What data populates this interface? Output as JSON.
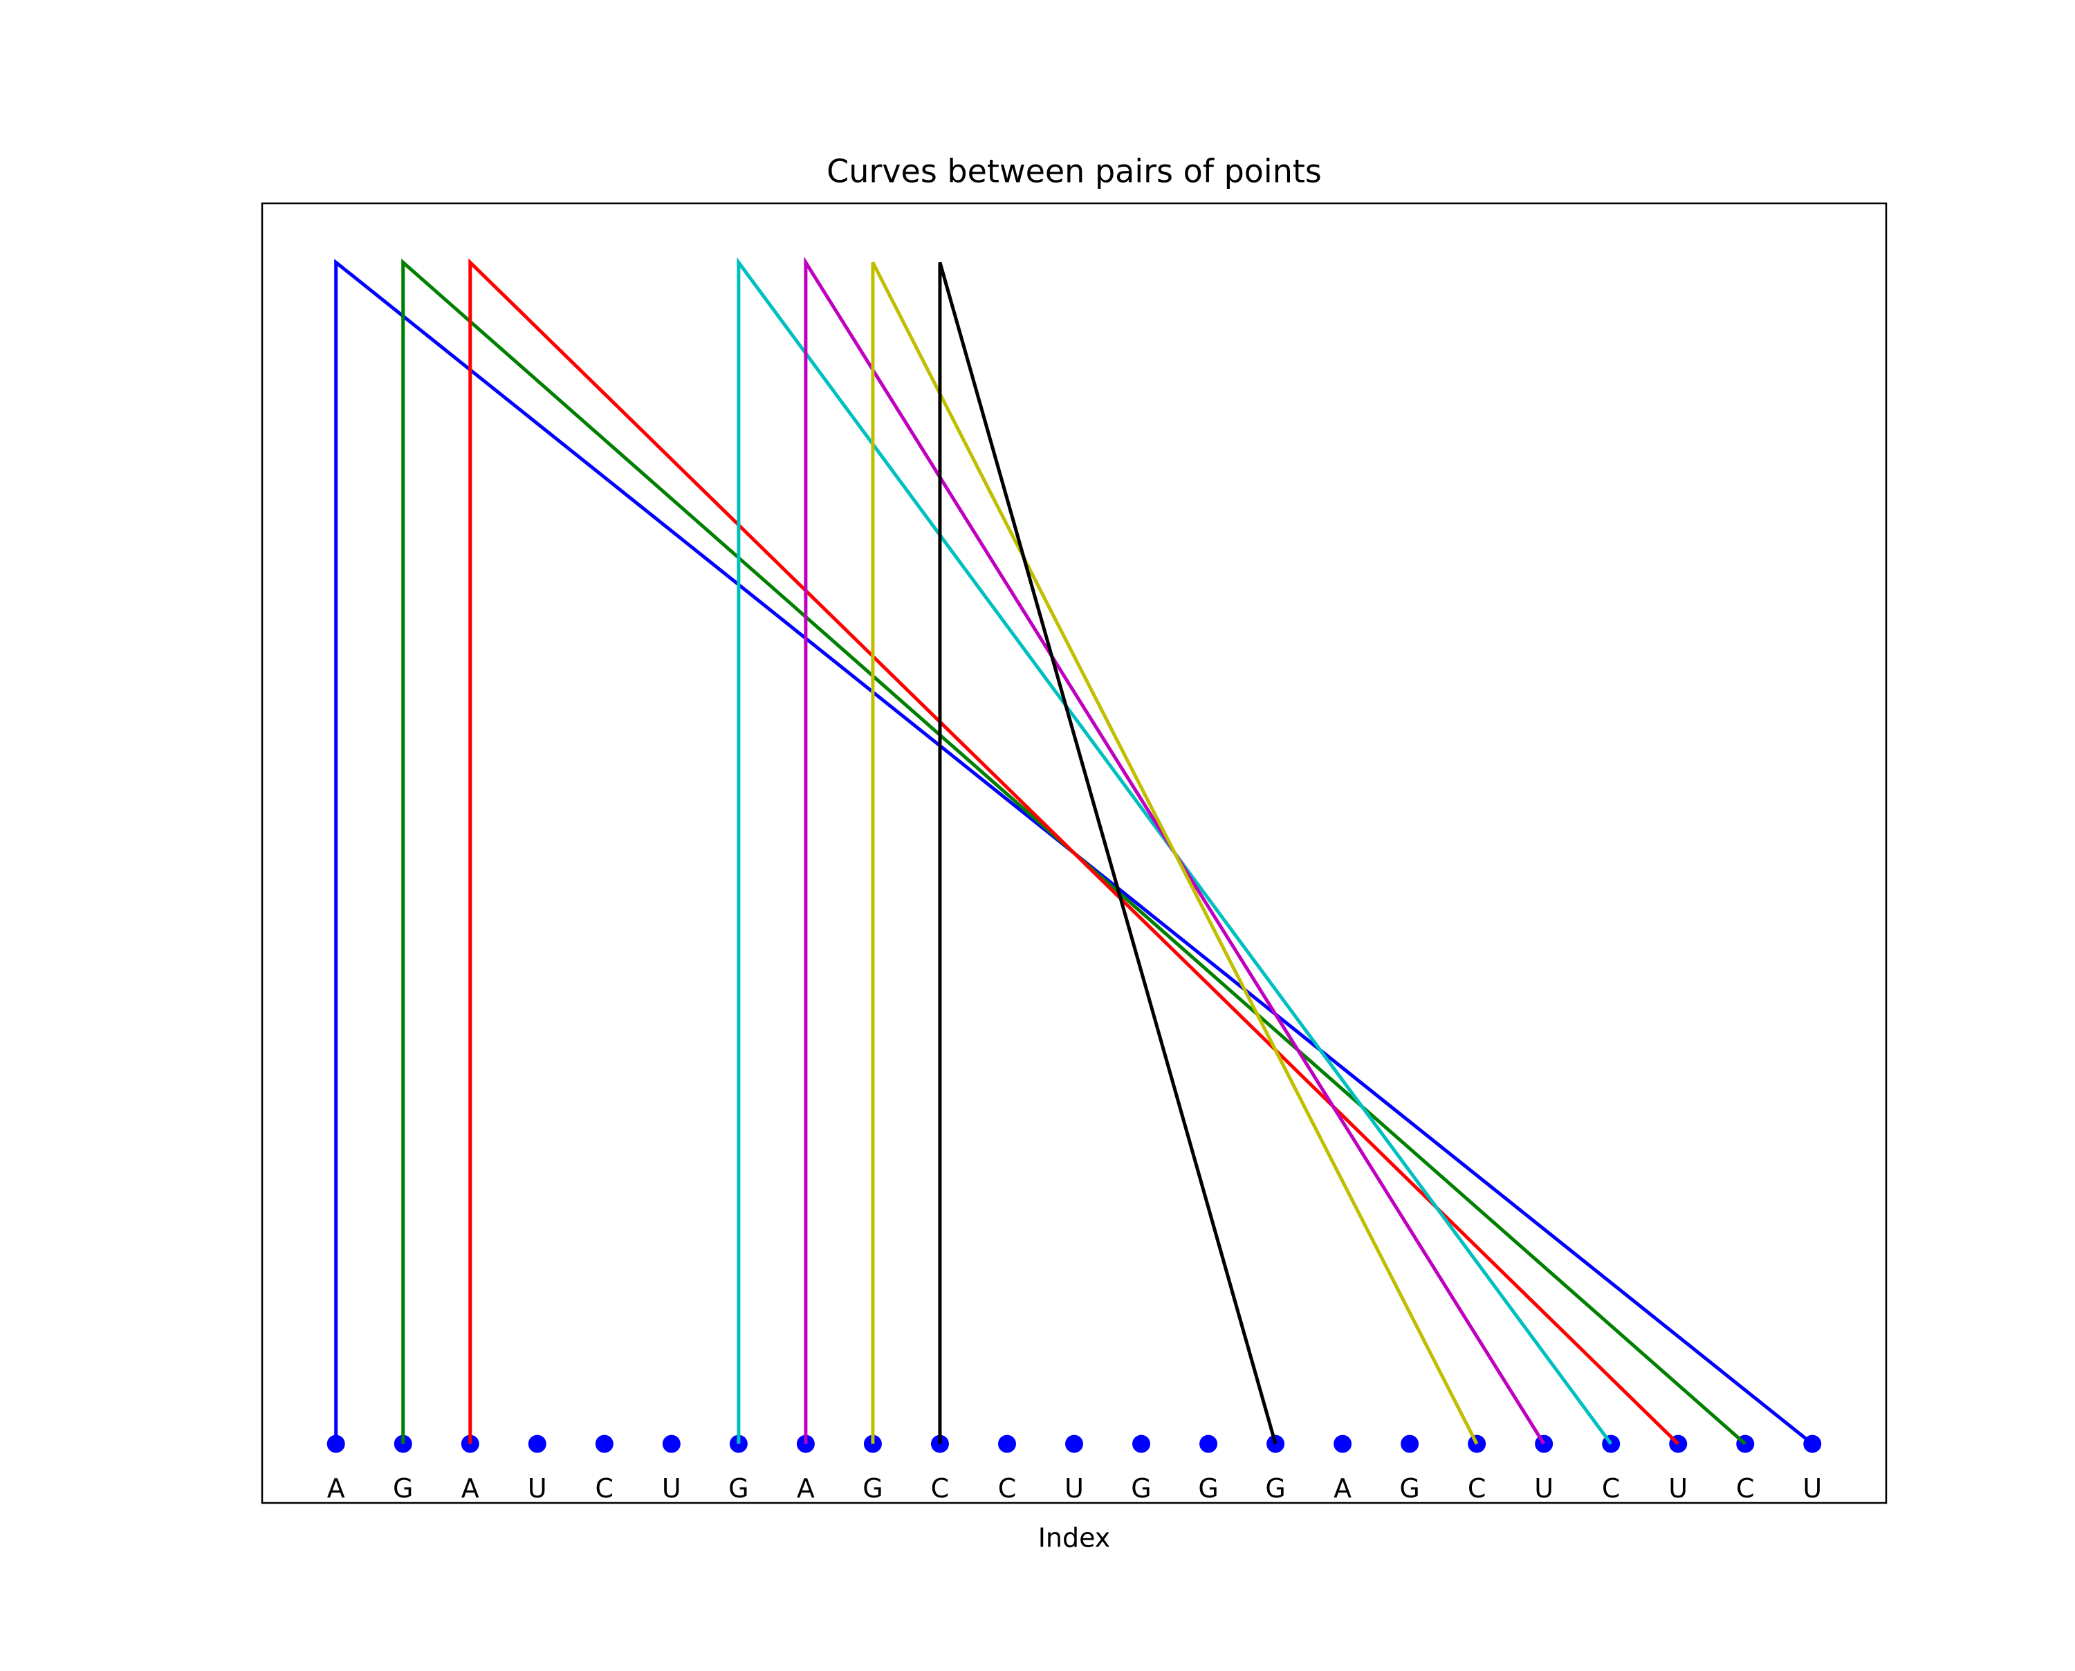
{
  "chart_data": {
    "type": "arc",
    "title": "Curves between pairs of points",
    "xlabel": "Index",
    "categories": [
      "A",
      "G",
      "A",
      "U",
      "C",
      "U",
      "G",
      "A",
      "G",
      "C",
      "C",
      "U",
      "G",
      "G",
      "G",
      "A",
      "G",
      "C",
      "U",
      "C",
      "U",
      "C",
      "U"
    ],
    "x": [
      0,
      1,
      2,
      3,
      4,
      5,
      6,
      7,
      8,
      9,
      10,
      11,
      12,
      13,
      14,
      15,
      16,
      17,
      18,
      19,
      20,
      21,
      22
    ],
    "y": [
      0,
      0,
      0,
      0,
      0,
      0,
      0,
      0,
      0,
      0,
      0,
      0,
      0,
      0,
      0,
      0,
      0,
      0,
      0,
      0,
      0,
      0,
      0
    ],
    "point_color": "#0000ff",
    "pairs": [
      {
        "from": 0,
        "to": 22,
        "height": 1,
        "color": "#0000ff"
      },
      {
        "from": 1,
        "to": 21,
        "height": 1,
        "color": "#008000"
      },
      {
        "from": 2,
        "to": 20,
        "height": 1,
        "color": "#ff0000"
      },
      {
        "from": 6,
        "to": 19,
        "height": 1,
        "color": "#00bfbf"
      },
      {
        "from": 7,
        "to": 18,
        "height": 1,
        "color": "#bf00bf"
      },
      {
        "from": 8,
        "to": 17,
        "height": 1,
        "color": "#bfbf00"
      },
      {
        "from": 9,
        "to": 14,
        "height": 1,
        "color": "#000000"
      }
    ],
    "xlim": [
      -1.1,
      23.1
    ],
    "ylim": [
      -0.05,
      1.05
    ]
  }
}
